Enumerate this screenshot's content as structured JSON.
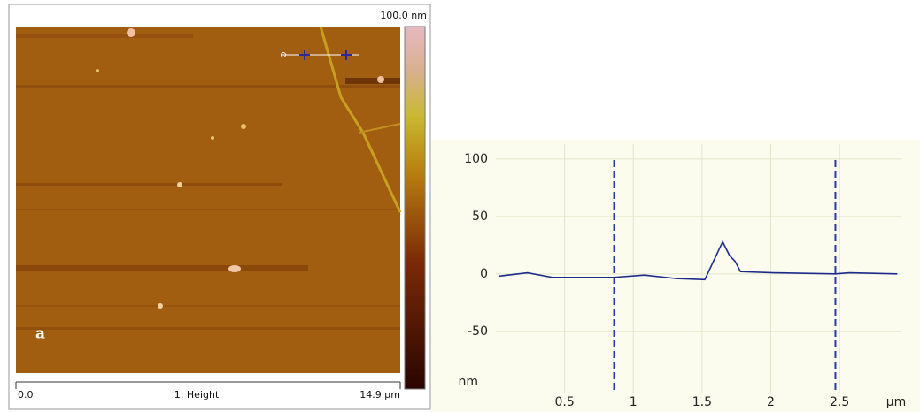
{
  "afm_image": {
    "scale_max": "100.0 nm",
    "x_start": "0.0",
    "channel": "1: Height",
    "x_end": "14.9 µm",
    "panel_label": "a"
  },
  "chart_data": {
    "type": "line",
    "ylabel": "nm",
    "xlabel": "µm",
    "x": [
      0.02,
      0.23,
      0.41,
      0.86,
      1.08,
      1.31,
      1.52,
      1.65,
      1.7,
      1.74,
      1.78,
      2.02,
      2.47,
      2.57,
      2.92
    ],
    "series": [
      {
        "color": "#1c2a8c",
        "values": [
          -2,
          1,
          -3,
          -3,
          -1,
          -4,
          -5,
          28,
          16,
          11,
          2,
          1,
          0,
          1,
          0
        ]
      }
    ],
    "cursors": [
      0.86,
      2.47
    ],
    "cursor_color": "#2a3aa8",
    "xlim": [
      0,
      2.95
    ],
    "ylim": [
      -104,
      113
    ],
    "xticks": [
      0.5,
      1,
      1.5,
      2,
      2.5
    ],
    "yticks": [
      100,
      50,
      0,
      -50
    ],
    "grid": true
  }
}
